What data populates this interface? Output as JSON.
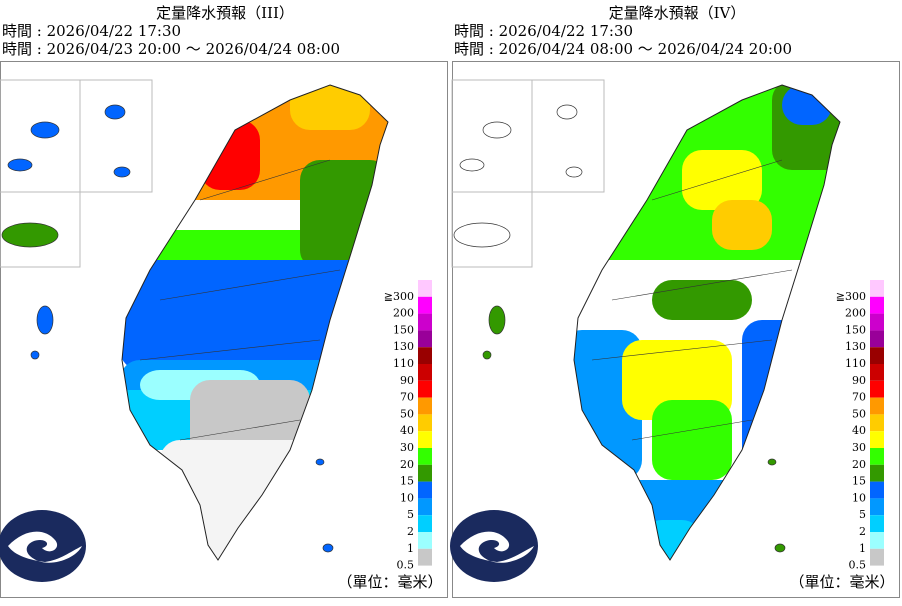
{
  "panels": [
    {
      "title": "定量降水預報（III）",
      "issued": "時間 : 2026/04/22 17:30",
      "valid": "時間 : 2026/04/23 20:00 ～ 2026/04/24 08:00"
    },
    {
      "title": "定量降水預報（IV）",
      "issued": "時間 : 2026/04/22 17:30",
      "valid": "時間 : 2026/04/24 08:00 ～ 2026/04/24 20:00"
    }
  ],
  "legend": {
    "labels": [
      "≧300",
      "200",
      "150",
      "130",
      "110",
      "90",
      "70",
      "50",
      "40",
      "30",
      "20",
      "15",
      "10",
      "5",
      "2",
      "1",
      "0.5"
    ],
    "colors": [
      "#ffc8ff",
      "#ff00ff",
      "#cc00cc",
      "#990099",
      "#990000",
      "#cc0000",
      "#ff0000",
      "#ff9900",
      "#ffcc00",
      "#ffff00",
      "#33ff00",
      "#339900",
      "#0165ff",
      "#0198ff",
      "#00cfff",
      "#9bffff",
      "#c8c8c8"
    ]
  },
  "unit": "（單位：毫米）"
}
